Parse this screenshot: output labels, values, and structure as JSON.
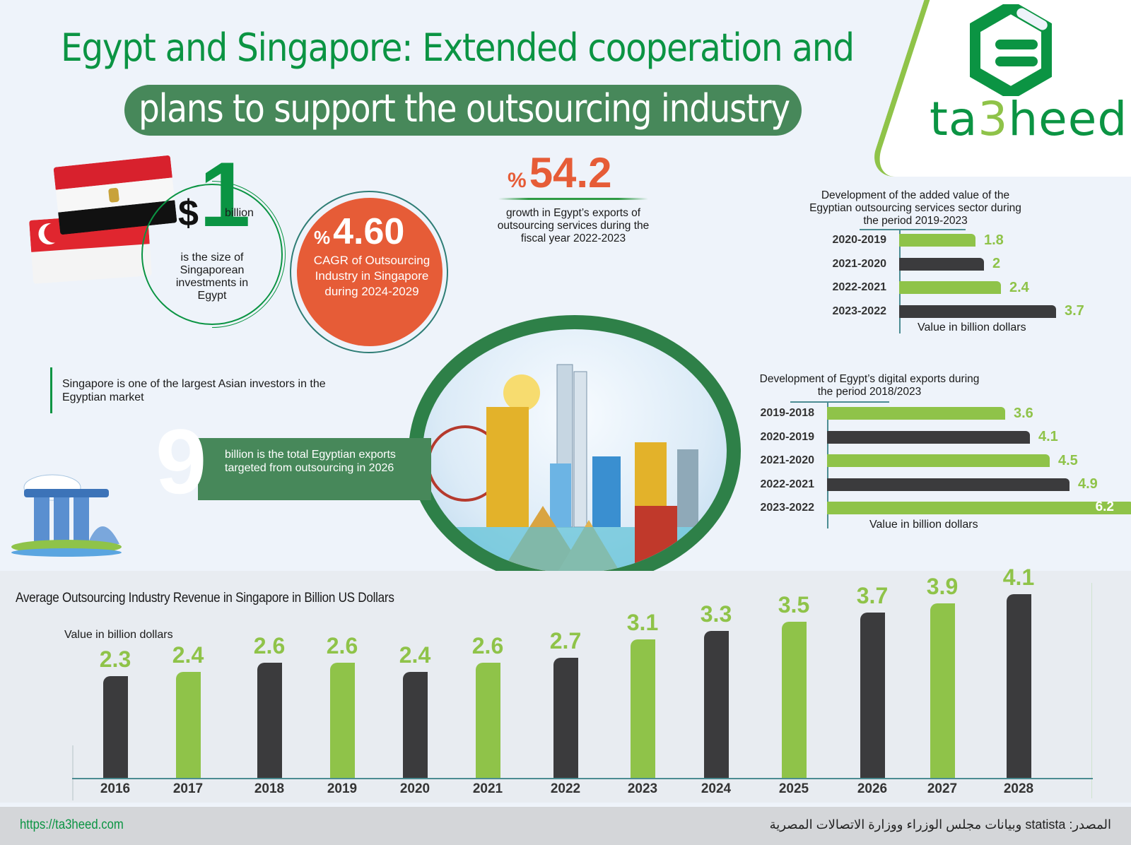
{
  "header": {
    "title_line1": "Egypt and Singapore: Extended cooperation and",
    "title_line2": "plans to support the outsourcing industry"
  },
  "logo": {
    "text_a": "ta",
    "text_b": "3",
    "text_c": "heed"
  },
  "stats": {
    "investment": {
      "currency": "$",
      "value": "1",
      "unit": "billion",
      "desc": "is the size of Singaporean investments in Egypt"
    },
    "cagr": {
      "percent_sign": "%",
      "value": "4.60",
      "desc": "CAGR of Outsourcing Industry in Singapore during 2024-2029"
    },
    "growth": {
      "percent_sign": "%",
      "value": "54.2",
      "desc": "growth in Egypt’s exports of outsourcing services during the fiscal year 2022-2023"
    },
    "note": "Singapore is one of the largest Asian investors in the Egyptian market",
    "target": {
      "value": "9",
      "desc": "billion is the total Egyptian exports targeted from outsourcing in 2026"
    }
  },
  "colors": {
    "brand_green": "#0b9443",
    "light_green": "#8fc349",
    "dark_bar": "#3b3b3d",
    "orange": "#e65c37",
    "band_green": "#47885a"
  },
  "chart_data": [
    {
      "type": "bar",
      "orientation": "horizontal",
      "title": "Development of the added value of the Egyptian outsourcing services sector during the period 2019-2023",
      "categories": [
        "2020-2019",
        "2021-2020",
        "2022-2021",
        "2023-2022"
      ],
      "values": [
        1.8,
        2.0,
        2.4,
        3.7
      ],
      "xlabel": "Value in billion dollars",
      "bar_colors": [
        "#8fc349",
        "#3b3b3d",
        "#8fc349",
        "#3b3b3d"
      ]
    },
    {
      "type": "bar",
      "orientation": "horizontal",
      "title": "Development of Egypt’s digital exports during the period 2018/2023",
      "categories": [
        "2019-2018",
        "2020-2019",
        "2021-2020",
        "2022-2021",
        "2023-2022"
      ],
      "values": [
        3.6,
        4.1,
        4.5,
        4.9,
        6.2
      ],
      "xlabel": "Value in billion dollars",
      "bar_colors": [
        "#8fc349",
        "#3b3b3d",
        "#8fc349",
        "#3b3b3d",
        "#8fc349"
      ]
    },
    {
      "type": "bar",
      "orientation": "vertical",
      "title": "Average Outsourcing Industry Revenue in Singapore in Billion US Dollars",
      "ylabel": "Value in billion dollars",
      "categories": [
        "2016",
        "2017",
        "2018",
        "2019",
        "2020",
        "2021",
        "2022",
        "2023",
        "2024",
        "2025",
        "2026",
        "2027",
        "2028"
      ],
      "values": [
        2.3,
        2.4,
        2.6,
        2.6,
        2.4,
        2.6,
        2.7,
        3.1,
        3.3,
        3.5,
        3.7,
        3.9,
        4.1
      ],
      "bar_colors": [
        "#3b3b3d",
        "#8fc349",
        "#3b3b3d",
        "#8fc349",
        "#3b3b3d",
        "#8fc349",
        "#3b3b3d",
        "#8fc349",
        "#3b3b3d",
        "#8fc349",
        "#3b3b3d",
        "#8fc349",
        "#3b3b3d"
      ]
    }
  ],
  "footer": {
    "url": "https://ta3heed.com",
    "source": "المصدر: statista وبيانات مجلس الوزراء ووزارة الاتصالات المصرية"
  }
}
